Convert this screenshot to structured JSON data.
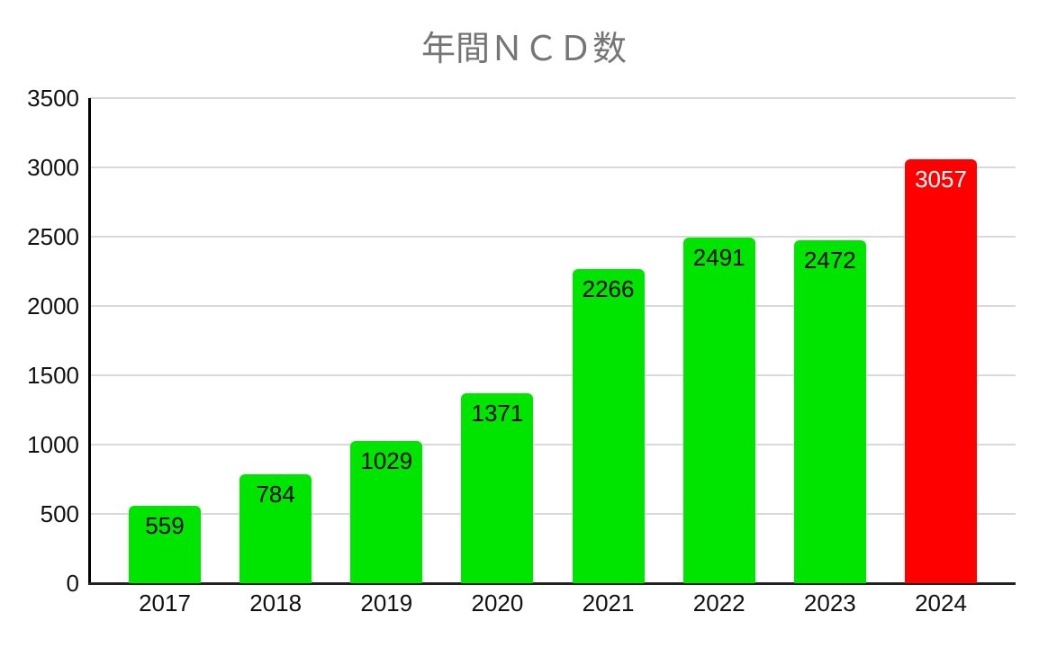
{
  "chart_data": {
    "type": "bar",
    "title": "年間ＮＣＤ数",
    "categories": [
      "2017",
      "2018",
      "2019",
      "2020",
      "2021",
      "2022",
      "2023",
      "2024"
    ],
    "values": [
      559,
      784,
      1029,
      1371,
      2266,
      2491,
      2472,
      3057
    ],
    "bar_colors": [
      "#00e500",
      "#00e500",
      "#00e500",
      "#00e500",
      "#00e500",
      "#00e500",
      "#00e500",
      "#fe0000"
    ],
    "value_label_colors": [
      "#000000",
      "#000000",
      "#000000",
      "#000000",
      "#000000",
      "#000000",
      "#000000",
      "#ffffff"
    ],
    "xlabel": "",
    "ylabel": "",
    "ylim": [
      0,
      3500
    ],
    "y_ticks": [
      0,
      500,
      1000,
      1500,
      2000,
      2500,
      3000,
      3500
    ],
    "grid": true,
    "legend": "none"
  },
  "colors": {
    "background": "#ffffff",
    "title_text": "#757575",
    "tick_text": "#111111",
    "gridline": "#d9d9d9",
    "axis_line": "#000000",
    "bar_default": "#00e500",
    "bar_highlight": "#fe0000"
  }
}
